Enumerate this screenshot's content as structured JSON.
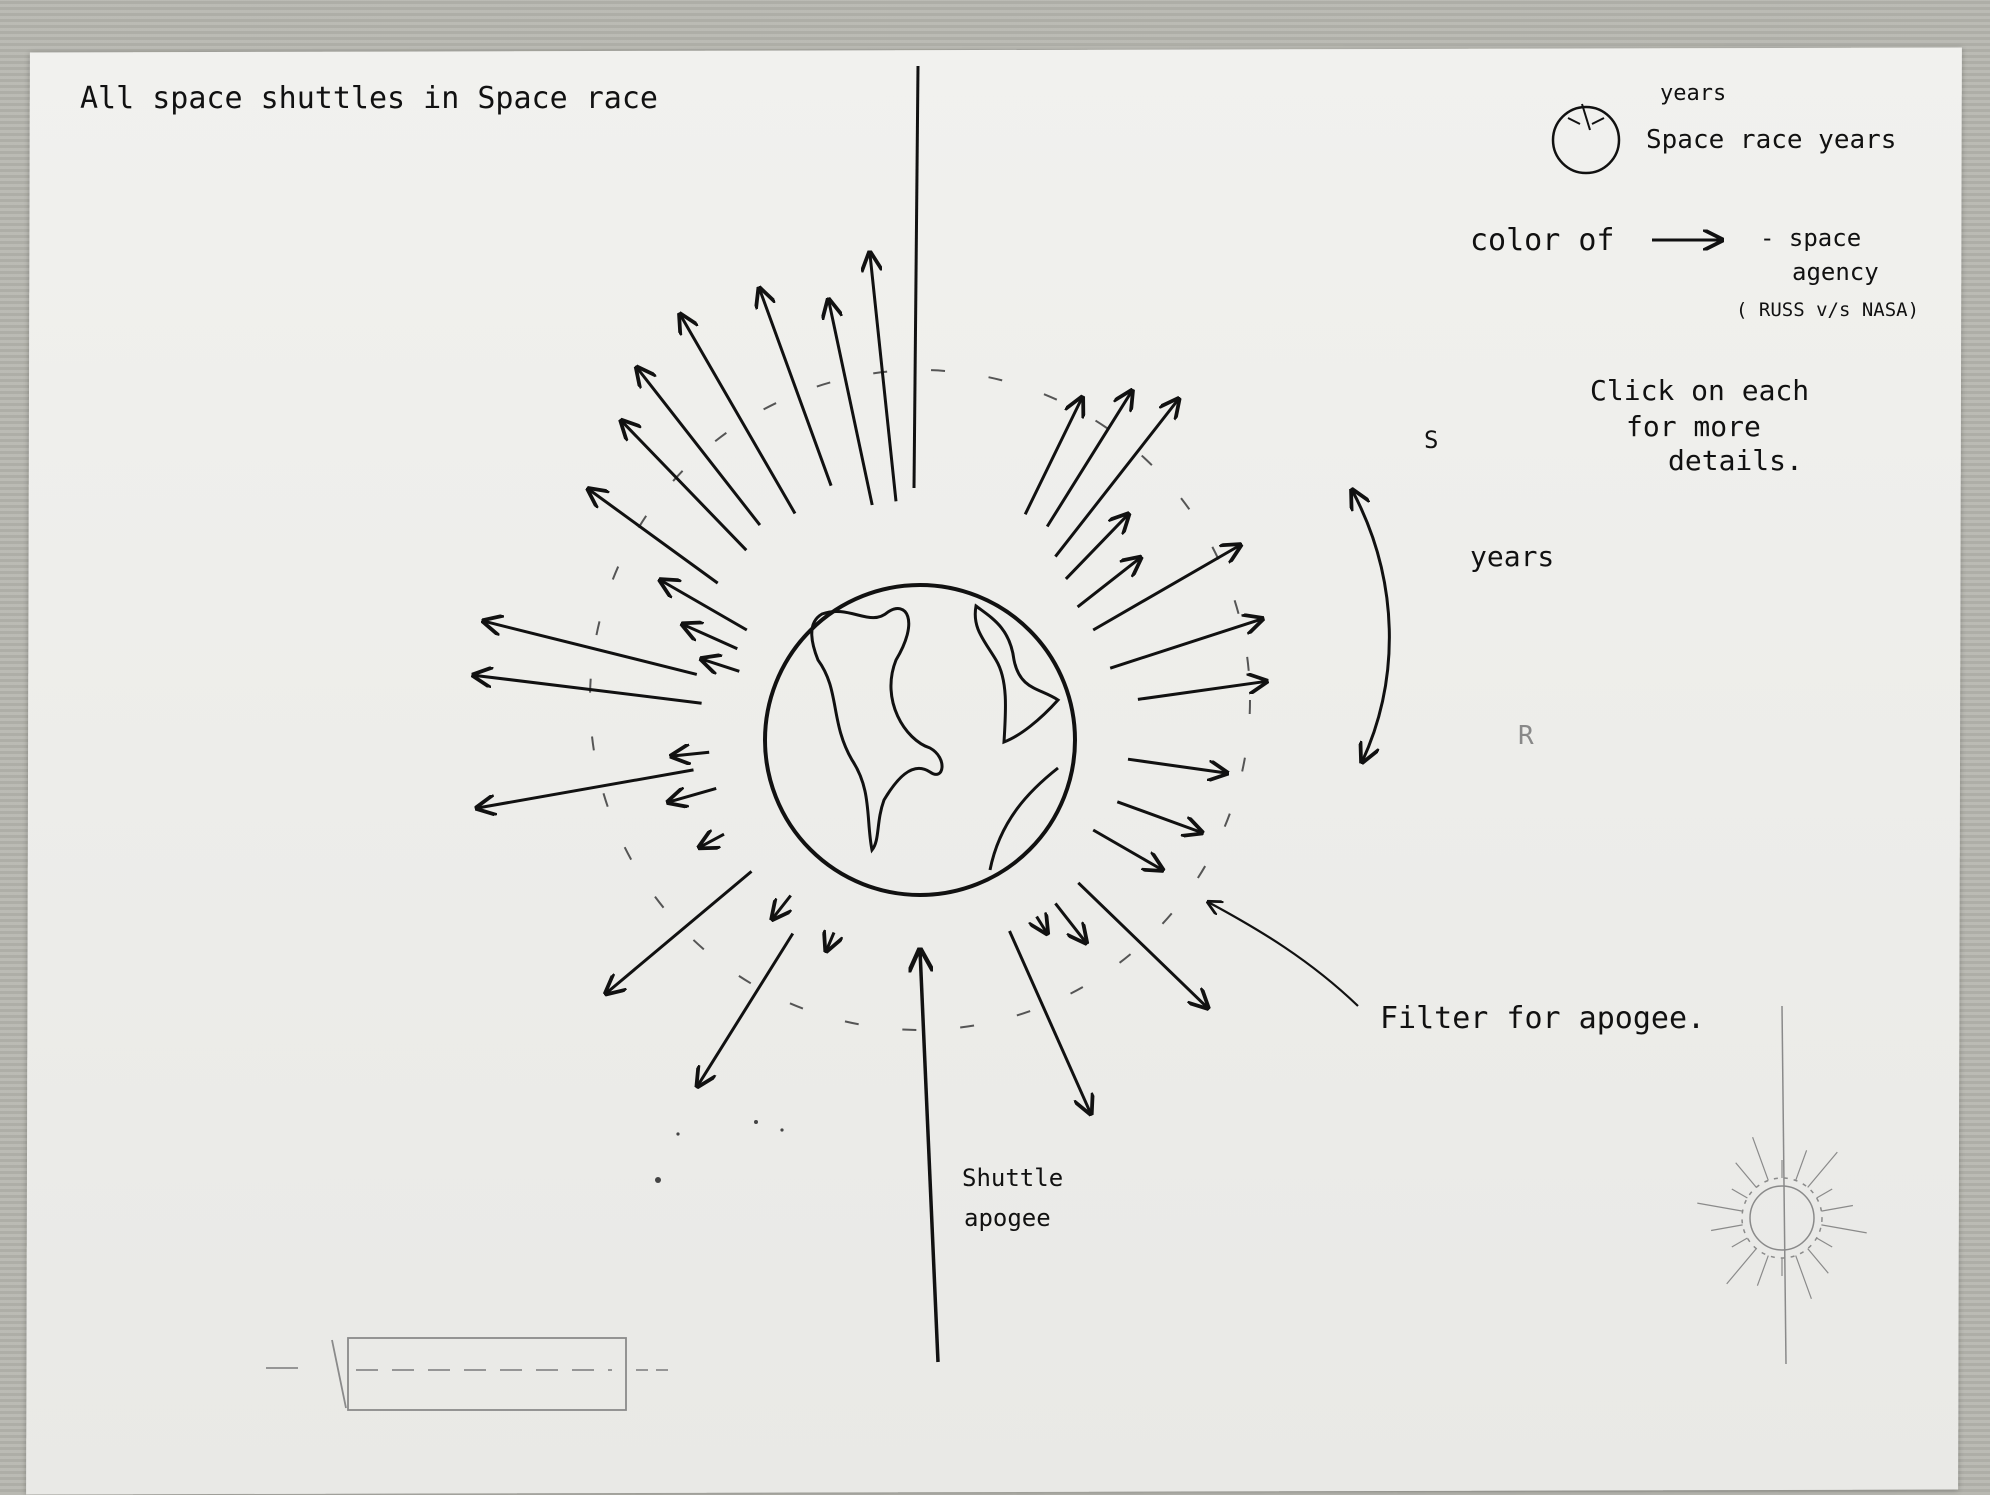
{
  "title": "All space shuttles in Space race",
  "legend": {
    "years_small": "years",
    "space_race_years": "Space race years",
    "color_of": "color of",
    "agency_1": "- space",
    "agency_2": "agency",
    "agency_3": "( RUSS v/s NASA)",
    "click_1": "Click on each",
    "click_2": "for more",
    "click_3": "details."
  },
  "labels": {
    "s_mark": "S",
    "years_side": "years",
    "r_mark": "R",
    "filter": "Filter for apogee.",
    "apogee_1": "Shuttle",
    "apogee_2": "apogee"
  },
  "colors": {
    "ink": "#111111",
    "pencil": "#8a8a8a",
    "paper": "#efefec"
  }
}
